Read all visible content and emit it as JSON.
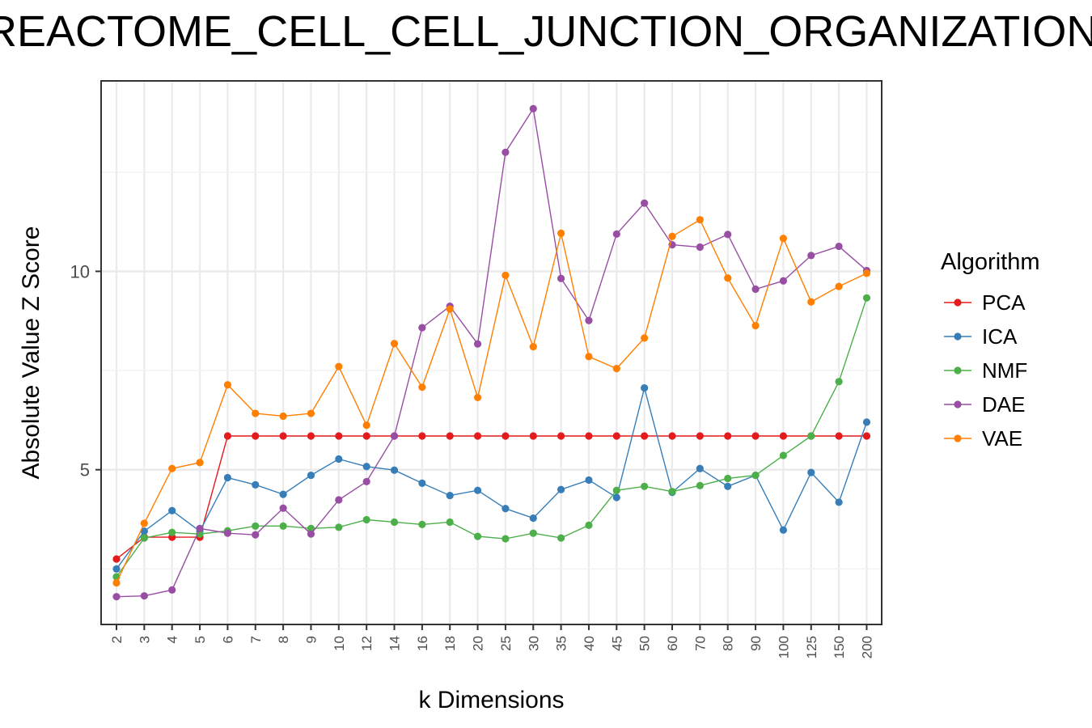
{
  "chart_data": {
    "type": "line",
    "title": "REACTOME_CELL_CELL_JUNCTION_ORGANIZATION",
    "xlabel": "k Dimensions",
    "ylabel": "Absolute Value Z Score",
    "categories": [
      "2",
      "3",
      "4",
      "5",
      "6",
      "7",
      "8",
      "9",
      "10",
      "12",
      "14",
      "16",
      "18",
      "20",
      "25",
      "30",
      "35",
      "40",
      "45",
      "50",
      "60",
      "70",
      "80",
      "90",
      "100",
      "125",
      "150",
      "200"
    ],
    "y_ticks": [
      5,
      10
    ],
    "ylim": [
      1.1,
      14.8
    ],
    "grid": true,
    "legend_title": "Algorithm",
    "legend_position": "right",
    "series": [
      {
        "name": "PCA",
        "color": "#E41A1C",
        "values": [
          2.75,
          3.3,
          3.3,
          3.3,
          5.85,
          5.85,
          5.85,
          5.85,
          5.85,
          5.85,
          5.85,
          5.85,
          5.85,
          5.85,
          5.85,
          5.85,
          5.85,
          5.85,
          5.85,
          5.85,
          5.85,
          5.85,
          5.85,
          5.85,
          5.85,
          5.85,
          5.85,
          5.85
        ]
      },
      {
        "name": "ICA",
        "color": "#377EB8",
        "values": [
          2.5,
          3.45,
          3.97,
          3.45,
          4.8,
          4.62,
          4.38,
          4.86,
          5.27,
          5.08,
          4.99,
          4.66,
          4.35,
          4.48,
          4.02,
          3.78,
          4.5,
          4.74,
          4.3,
          7.06,
          4.43,
          5.03,
          4.58,
          4.86,
          3.48,
          4.93,
          4.18,
          6.2
        ]
      },
      {
        "name": "NMF",
        "color": "#4DAF4A",
        "values": [
          2.3,
          3.28,
          3.42,
          3.38,
          3.46,
          3.58,
          3.58,
          3.52,
          3.55,
          3.74,
          3.68,
          3.62,
          3.68,
          3.32,
          3.26,
          3.4,
          3.28,
          3.6,
          4.48,
          4.58,
          4.45,
          4.6,
          4.78,
          4.86,
          5.36,
          5.85,
          7.22,
          9.33
        ]
      },
      {
        "name": "DAE",
        "color": "#984EA3",
        "values": [
          1.8,
          1.82,
          1.97,
          3.52,
          3.4,
          3.36,
          4.03,
          3.38,
          4.24,
          4.7,
          5.85,
          8.58,
          9.12,
          8.17,
          13.0,
          14.1,
          9.82,
          8.76,
          10.94,
          11.72,
          10.67,
          10.61,
          10.93,
          9.55,
          9.76,
          10.4,
          10.63,
          10.02
        ]
      },
      {
        "name": "VAE",
        "color": "#FF7F00",
        "values": [
          2.15,
          3.65,
          5.03,
          5.18,
          7.14,
          6.42,
          6.35,
          6.42,
          7.6,
          6.12,
          8.18,
          7.08,
          9.05,
          6.82,
          9.9,
          8.1,
          10.96,
          7.85,
          7.55,
          8.32,
          10.88,
          11.3,
          9.83,
          8.63,
          10.83,
          9.23,
          9.62,
          9.95
        ]
      }
    ]
  }
}
